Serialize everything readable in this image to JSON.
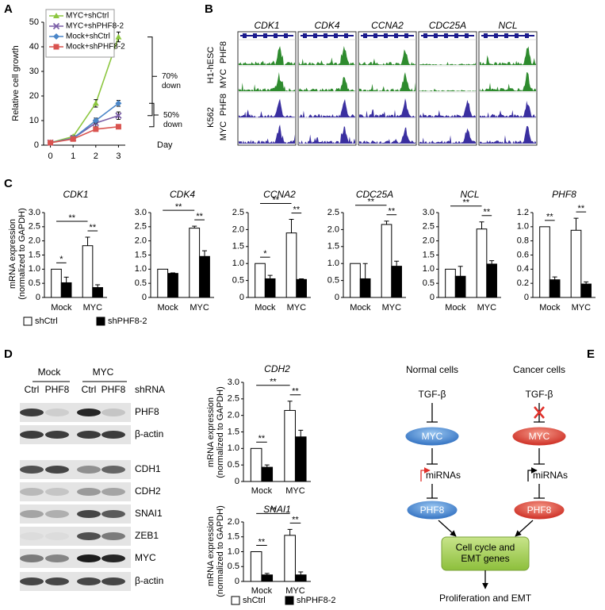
{
  "panel_labels": [
    "A",
    "B",
    "C",
    "D",
    "E"
  ],
  "chart_data": [
    {
      "type": "line",
      "ylabel": "Relative cell growth",
      "xlabel": "Day",
      "x": [
        0,
        1,
        2,
        3
      ],
      "xlim": [
        -0.3,
        3.3
      ],
      "xticks": [
        0,
        1,
        2,
        3
      ],
      "ylim": [
        0,
        50
      ],
      "yticks": [
        0,
        10,
        20,
        30,
        40,
        50
      ],
      "series": [
        {
          "name": "MYC+shCtrl",
          "color": "#8cc63f",
          "marker": "triangle",
          "values": [
            1,
            3.5,
            17,
            44
          ],
          "errors": [
            0.1,
            0.4,
            1.5,
            2
          ]
        },
        {
          "name": "MYC+shPHF8-2",
          "color": "#7b5ea7",
          "marker": "x",
          "values": [
            1,
            2.8,
            9,
            12
          ],
          "errors": [
            0.1,
            0.3,
            1.5,
            1.5
          ]
        },
        {
          "name": "Mock+shCtrl",
          "color": "#4a86c8",
          "marker": "diamond",
          "values": [
            1,
            2.8,
            10,
            17
          ],
          "errors": [
            0.1,
            0.3,
            1,
            1.2
          ]
        },
        {
          "name": "Mock+shPHF8-2",
          "color": "#d9534f",
          "marker": "square",
          "values": [
            1,
            2.5,
            6.5,
            7.5
          ],
          "errors": [
            0.1,
            0.2,
            0.5,
            0.5
          ]
        }
      ],
      "annotations": [
        "70% down",
        "50% down"
      ]
    },
    {
      "type": "bar",
      "ylabel": "mRNA expression (normalized to GAPDH)",
      "categories": [
        "Mock",
        "MYC"
      ],
      "legend": [
        {
          "name": "shCtrl",
          "color": "#ffffff"
        },
        {
          "name": "shPHF8-2",
          "color": "#000000"
        }
      ],
      "charts": [
        {
          "title": "CDK1",
          "ylim": [
            0,
            3
          ],
          "yticks": [
            0,
            0.5,
            {
              "value": 1,
              "label": "1.0"
            },
            1.5,
            {
              "value": 2,
              "label": "2.0"
            },
            2.5,
            {
              "value": 3,
              "label": "3.0"
            }
          ],
          "series": [
            {
              "values": [
                1.0,
                1.83
              ],
              "errors": [
                0,
                0.3
              ]
            },
            {
              "values": [
                0.52,
                0.35
              ],
              "errors": [
                0.2,
                0.1
              ]
            }
          ],
          "significance": [
            "*",
            "**",
            "**"
          ]
        },
        {
          "title": "CDK4",
          "ylim": [
            0,
            3
          ],
          "yticks": [
            0,
            0.5,
            {
              "value": 1,
              "label": "1.0"
            },
            1.5,
            {
              "value": 2,
              "label": "2.0"
            },
            2.5,
            {
              "value": 3,
              "label": "3.0"
            }
          ],
          "series": [
            {
              "values": [
                1.0,
                2.45
              ],
              "errors": [
                0,
                0.07
              ]
            },
            {
              "values": [
                0.85,
                1.45
              ],
              "errors": [
                0.02,
                0.2
              ]
            }
          ],
          "significance": [
            "**",
            "**"
          ]
        },
        {
          "title": "CCNA2",
          "ylim": [
            0,
            2.5
          ],
          "yticks": [
            0,
            0.5,
            {
              "value": 1,
              "label": "1.0"
            },
            1.5,
            {
              "value": 2,
              "label": "2.0"
            },
            2.5
          ],
          "series": [
            {
              "values": [
                1.0,
                1.9
              ],
              "errors": [
                0,
                0.4
              ]
            },
            {
              "values": [
                0.55,
                0.53
              ],
              "errors": [
                0.1,
                0.02
              ]
            }
          ],
          "significance": [
            "*",
            "**",
            "**"
          ]
        },
        {
          "title": "CDC25A",
          "ylim": [
            0,
            2.5
          ],
          "yticks": [
            0,
            0.5,
            {
              "value": 1,
              "label": "1.0"
            },
            1.5,
            {
              "value": 2,
              "label": "2.0"
            },
            2.5
          ],
          "series": [
            {
              "values": [
                1.0,
                2.15
              ],
              "errors": [
                0,
                0.1
              ]
            },
            {
              "values": [
                0.55,
                0.92
              ],
              "errors": [
                0.45,
                0.15
              ]
            }
          ],
          "significance": [
            "**",
            "**"
          ]
        },
        {
          "title": "NCL",
          "ylim": [
            0,
            3
          ],
          "yticks": [
            0,
            0.5,
            {
              "value": 1,
              "label": "1.0"
            },
            1.5,
            {
              "value": 2,
              "label": "2.0"
            },
            2.5,
            {
              "value": 3,
              "label": "3.0"
            }
          ],
          "series": [
            {
              "values": [
                1.0,
                2.42
              ],
              "errors": [
                0,
                0.25
              ]
            },
            {
              "values": [
                0.75,
                1.18
              ],
              "errors": [
                0.35,
                0.12
              ]
            }
          ],
          "significance": [
            "**",
            "**"
          ]
        },
        {
          "title": "PHF8",
          "ylim": [
            0,
            1.2
          ],
          "yticks": [
            0,
            0.2,
            0.4,
            0.6,
            0.8,
            {
              "value": 1,
              "label": "1.0"
            },
            1.2
          ],
          "series": [
            {
              "values": [
                1.0,
                0.95
              ],
              "errors": [
                0,
                0.17
              ]
            },
            {
              "values": [
                0.25,
                0.19
              ],
              "errors": [
                0.04,
                0.03
              ]
            }
          ],
          "significance": [
            "**",
            "**"
          ]
        }
      ]
    },
    {
      "type": "bar",
      "ylabel": "mRNA expression (normalized to GAPDH)",
      "categories": [
        "Mock",
        "MYC"
      ],
      "legend": [
        {
          "name": "shCtrl",
          "color": "#ffffff"
        },
        {
          "name": "shPHF8-2",
          "color": "#000000"
        }
      ],
      "charts": [
        {
          "title": "CDH2",
          "ylim": [
            0,
            3
          ],
          "yticks": [
            0,
            0.5,
            {
              "value": 1,
              "label": "1.0"
            },
            1.5,
            {
              "value": 2,
              "label": "2.0"
            },
            2.5,
            {
              "value": 3,
              "label": "3.0"
            }
          ],
          "series": [
            {
              "values": [
                1.0,
                2.15
              ],
              "errors": [
                0,
                0.28
              ]
            },
            {
              "values": [
                0.43,
                1.35
              ],
              "errors": [
                0.07,
                0.2
              ]
            }
          ],
          "significance": [
            "**",
            "**",
            "**"
          ]
        },
        {
          "title": "SNAI1",
          "ylim": [
            0,
            2
          ],
          "yticks": [
            0,
            0.5,
            {
              "value": 1,
              "label": "1.0"
            },
            1.5,
            {
              "value": 2,
              "label": "2.0"
            }
          ],
          "series": [
            {
              "values": [
                1.0,
                1.55
              ],
              "errors": [
                0,
                0.2
              ]
            },
            {
              "values": [
                0.22,
                0.22
              ],
              "errors": [
                0.05,
                0.1
              ]
            }
          ],
          "significance": [
            "**",
            "**",
            "**"
          ]
        }
      ]
    }
  ],
  "chip_seq": {
    "genes": [
      "CDK1",
      "CDK4",
      "CCNA2",
      "CDC25A",
      "NCL"
    ],
    "cell_lines": [
      "H1-hESC",
      "K562"
    ],
    "factors": [
      "PHF8",
      "MYC"
    ]
  },
  "western_blot": {
    "groups": [
      "Mock",
      "MYC"
    ],
    "lanes": [
      "Ctrl",
      "PHF8",
      "Ctrl",
      "PHF8"
    ],
    "lane_header": "shRNA",
    "proteins": [
      "PHF8",
      "β-actin",
      "CDH1",
      "CDH2",
      "SNAI1",
      "ZEB1",
      "MYC",
      "β-actin"
    ]
  },
  "diagram": {
    "columns": [
      {
        "title": "Normal cells",
        "signal": "TGF-β",
        "oncogene": "MYC",
        "mirna": "miRNAs",
        "target": "PHF8"
      },
      {
        "title": "Cancer cells",
        "signal": "TGF-β",
        "oncogene": "MYC",
        "mirna": "miRNAs",
        "target": "PHF8"
      }
    ],
    "genes": "Cell cycle and EMT genes",
    "outcome": "Proliferation and EMT"
  }
}
